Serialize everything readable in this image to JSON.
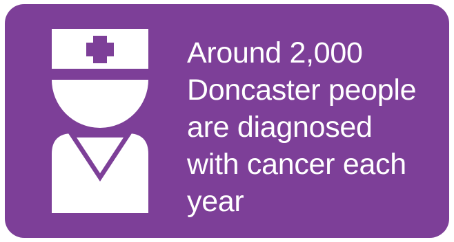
{
  "card": {
    "background_color": "#7d3f98",
    "icon": "nurse-icon",
    "stat_lines": [
      "Around 2,000",
      "Doncaster people",
      "are diagnosed",
      "with cancer each",
      "year"
    ]
  }
}
